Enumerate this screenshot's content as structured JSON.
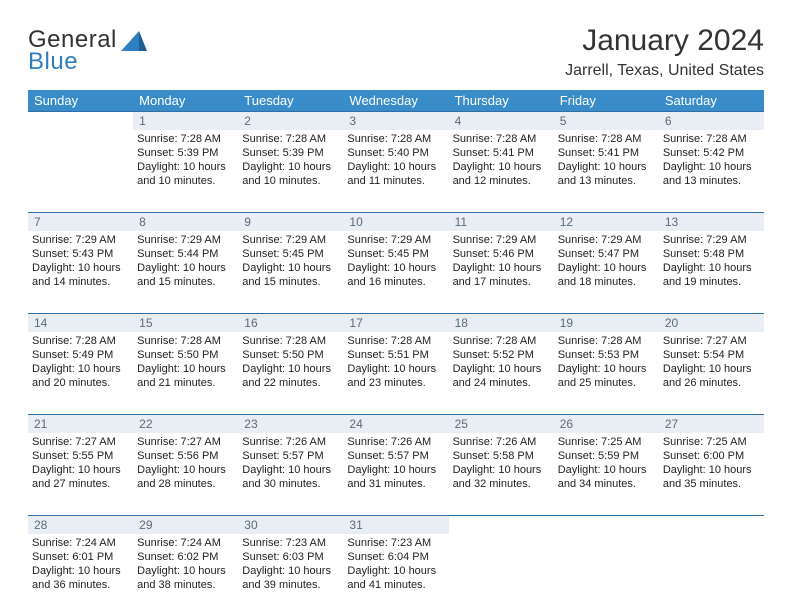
{
  "brand": {
    "line1": "General",
    "line2": "Blue",
    "accent_color": "#2f7ec0",
    "text_color": "#333333"
  },
  "title": "January 2024",
  "location": "Jarrell, Texas, United States",
  "colors": {
    "header_bg": "#3a8cc8",
    "header_text": "#ffffff",
    "daynum_bg": "#e8eef3",
    "daynum_text": "#5a6b79",
    "rule": "#2f6ea6",
    "body_text": "#222222",
    "background": "#ffffff"
  },
  "weekdays": [
    "Sunday",
    "Monday",
    "Tuesday",
    "Wednesday",
    "Thursday",
    "Friday",
    "Saturday"
  ],
  "weeks": [
    [
      null,
      {
        "n": "1",
        "sr": "Sunrise: 7:28 AM",
        "ss": "Sunset: 5:39 PM",
        "dl": "Daylight: 10 hours and 10 minutes."
      },
      {
        "n": "2",
        "sr": "Sunrise: 7:28 AM",
        "ss": "Sunset: 5:39 PM",
        "dl": "Daylight: 10 hours and 10 minutes."
      },
      {
        "n": "3",
        "sr": "Sunrise: 7:28 AM",
        "ss": "Sunset: 5:40 PM",
        "dl": "Daylight: 10 hours and 11 minutes."
      },
      {
        "n": "4",
        "sr": "Sunrise: 7:28 AM",
        "ss": "Sunset: 5:41 PM",
        "dl": "Daylight: 10 hours and 12 minutes."
      },
      {
        "n": "5",
        "sr": "Sunrise: 7:28 AM",
        "ss": "Sunset: 5:41 PM",
        "dl": "Daylight: 10 hours and 13 minutes."
      },
      {
        "n": "6",
        "sr": "Sunrise: 7:28 AM",
        "ss": "Sunset: 5:42 PM",
        "dl": "Daylight: 10 hours and 13 minutes."
      }
    ],
    [
      {
        "n": "7",
        "sr": "Sunrise: 7:29 AM",
        "ss": "Sunset: 5:43 PM",
        "dl": "Daylight: 10 hours and 14 minutes."
      },
      {
        "n": "8",
        "sr": "Sunrise: 7:29 AM",
        "ss": "Sunset: 5:44 PM",
        "dl": "Daylight: 10 hours and 15 minutes."
      },
      {
        "n": "9",
        "sr": "Sunrise: 7:29 AM",
        "ss": "Sunset: 5:45 PM",
        "dl": "Daylight: 10 hours and 15 minutes."
      },
      {
        "n": "10",
        "sr": "Sunrise: 7:29 AM",
        "ss": "Sunset: 5:45 PM",
        "dl": "Daylight: 10 hours and 16 minutes."
      },
      {
        "n": "11",
        "sr": "Sunrise: 7:29 AM",
        "ss": "Sunset: 5:46 PM",
        "dl": "Daylight: 10 hours and 17 minutes."
      },
      {
        "n": "12",
        "sr": "Sunrise: 7:29 AM",
        "ss": "Sunset: 5:47 PM",
        "dl": "Daylight: 10 hours and 18 minutes."
      },
      {
        "n": "13",
        "sr": "Sunrise: 7:29 AM",
        "ss": "Sunset: 5:48 PM",
        "dl": "Daylight: 10 hours and 19 minutes."
      }
    ],
    [
      {
        "n": "14",
        "sr": "Sunrise: 7:28 AM",
        "ss": "Sunset: 5:49 PM",
        "dl": "Daylight: 10 hours and 20 minutes."
      },
      {
        "n": "15",
        "sr": "Sunrise: 7:28 AM",
        "ss": "Sunset: 5:50 PM",
        "dl": "Daylight: 10 hours and 21 minutes."
      },
      {
        "n": "16",
        "sr": "Sunrise: 7:28 AM",
        "ss": "Sunset: 5:50 PM",
        "dl": "Daylight: 10 hours and 22 minutes."
      },
      {
        "n": "17",
        "sr": "Sunrise: 7:28 AM",
        "ss": "Sunset: 5:51 PM",
        "dl": "Daylight: 10 hours and 23 minutes."
      },
      {
        "n": "18",
        "sr": "Sunrise: 7:28 AM",
        "ss": "Sunset: 5:52 PM",
        "dl": "Daylight: 10 hours and 24 minutes."
      },
      {
        "n": "19",
        "sr": "Sunrise: 7:28 AM",
        "ss": "Sunset: 5:53 PM",
        "dl": "Daylight: 10 hours and 25 minutes."
      },
      {
        "n": "20",
        "sr": "Sunrise: 7:27 AM",
        "ss": "Sunset: 5:54 PM",
        "dl": "Daylight: 10 hours and 26 minutes."
      }
    ],
    [
      {
        "n": "21",
        "sr": "Sunrise: 7:27 AM",
        "ss": "Sunset: 5:55 PM",
        "dl": "Daylight: 10 hours and 27 minutes."
      },
      {
        "n": "22",
        "sr": "Sunrise: 7:27 AM",
        "ss": "Sunset: 5:56 PM",
        "dl": "Daylight: 10 hours and 28 minutes."
      },
      {
        "n": "23",
        "sr": "Sunrise: 7:26 AM",
        "ss": "Sunset: 5:57 PM",
        "dl": "Daylight: 10 hours and 30 minutes."
      },
      {
        "n": "24",
        "sr": "Sunrise: 7:26 AM",
        "ss": "Sunset: 5:57 PM",
        "dl": "Daylight: 10 hours and 31 minutes."
      },
      {
        "n": "25",
        "sr": "Sunrise: 7:26 AM",
        "ss": "Sunset: 5:58 PM",
        "dl": "Daylight: 10 hours and 32 minutes."
      },
      {
        "n": "26",
        "sr": "Sunrise: 7:25 AM",
        "ss": "Sunset: 5:59 PM",
        "dl": "Daylight: 10 hours and 34 minutes."
      },
      {
        "n": "27",
        "sr": "Sunrise: 7:25 AM",
        "ss": "Sunset: 6:00 PM",
        "dl": "Daylight: 10 hours and 35 minutes."
      }
    ],
    [
      {
        "n": "28",
        "sr": "Sunrise: 7:24 AM",
        "ss": "Sunset: 6:01 PM",
        "dl": "Daylight: 10 hours and 36 minutes."
      },
      {
        "n": "29",
        "sr": "Sunrise: 7:24 AM",
        "ss": "Sunset: 6:02 PM",
        "dl": "Daylight: 10 hours and 38 minutes."
      },
      {
        "n": "30",
        "sr": "Sunrise: 7:23 AM",
        "ss": "Sunset: 6:03 PM",
        "dl": "Daylight: 10 hours and 39 minutes."
      },
      {
        "n": "31",
        "sr": "Sunrise: 7:23 AM",
        "ss": "Sunset: 6:04 PM",
        "dl": "Daylight: 10 hours and 41 minutes."
      },
      null,
      null,
      null
    ]
  ]
}
